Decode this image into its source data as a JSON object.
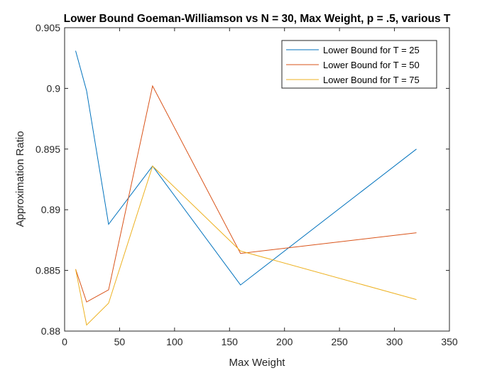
{
  "chart_data": {
    "type": "line",
    "title": "Lower Bound Goeman-Williamson vs N = 30, Max Weight, p = .5, various T",
    "xlabel": "Max Weight",
    "ylabel": "Approximation Ratio",
    "xlim": [
      0,
      350
    ],
    "ylim": [
      0.88,
      0.905
    ],
    "xticks": [
      0,
      50,
      100,
      150,
      200,
      250,
      300,
      350
    ],
    "yticks": [
      0.88,
      0.885,
      0.89,
      0.895,
      0.9,
      0.905
    ],
    "xtick_labels": [
      "0",
      "50",
      "100",
      "150",
      "200",
      "250",
      "300",
      "350"
    ],
    "ytick_labels": [
      "0.88",
      "0.885",
      "0.89",
      "0.895",
      "0.9",
      "0.905"
    ],
    "x": [
      10,
      20,
      40,
      80,
      160,
      320
    ],
    "series": [
      {
        "name": "Lower Bound for T = 25",
        "color": "#0072BD",
        "values": [
          0.9031,
          0.8998,
          0.8888,
          0.8936,
          0.8838,
          0.895
        ]
      },
      {
        "name": "Lower Bound for T = 50",
        "color": "#D95319",
        "values": [
          0.8851,
          0.8824,
          0.8834,
          0.9002,
          0.8864,
          0.8881
        ]
      },
      {
        "name": "Lower Bound for T = 75",
        "color": "#EDB120",
        "values": [
          0.8851,
          0.8805,
          0.8823,
          0.8936,
          0.8866,
          0.8826
        ]
      }
    ],
    "grid": false,
    "legend_position": "top-right"
  }
}
